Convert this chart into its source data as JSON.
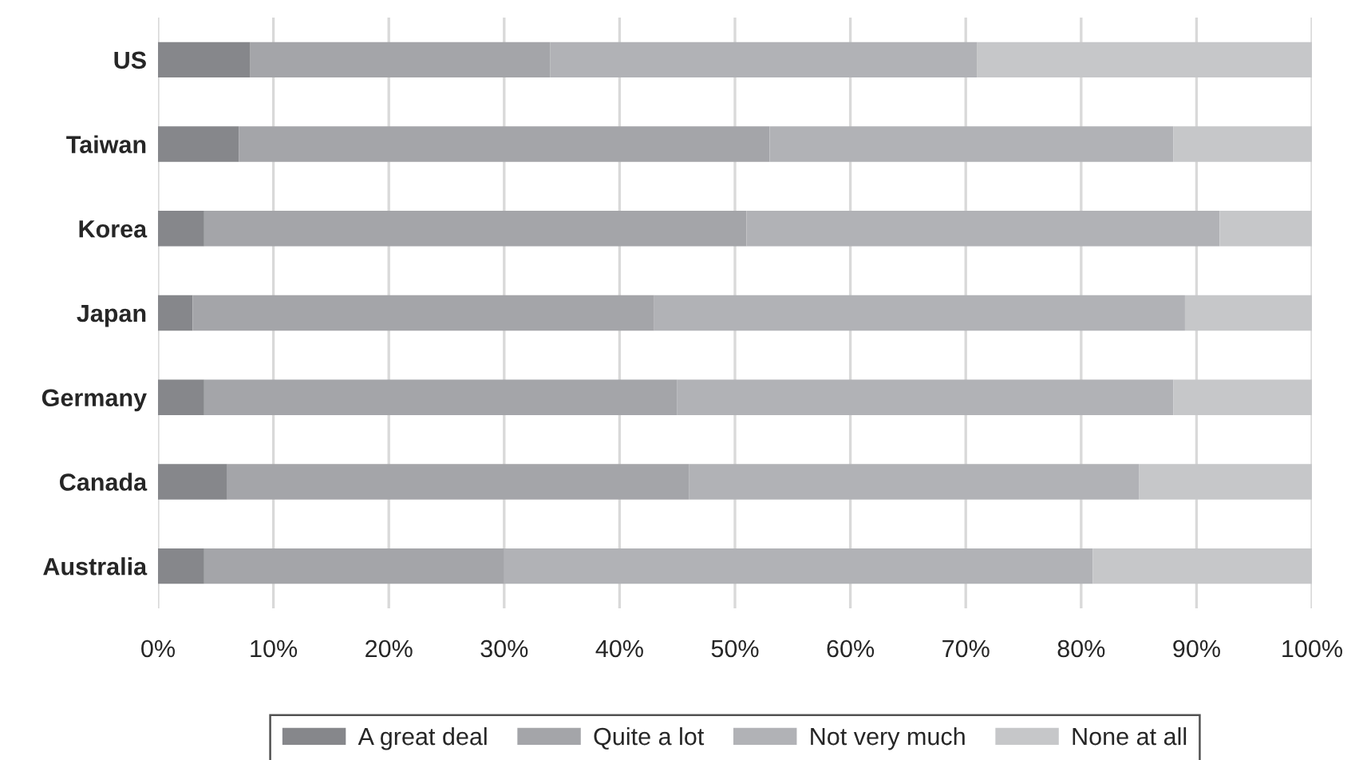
{
  "chart_data": {
    "type": "bar",
    "orientation": "horizontal",
    "stacked": true,
    "categories": [
      "US",
      "Taiwan",
      "Korea",
      "Japan",
      "Germany",
      "Canada",
      "Australia"
    ],
    "series": [
      {
        "name": "A great deal",
        "color": "#86878b",
        "values": [
          8,
          7,
          4,
          3,
          4,
          6,
          4
        ]
      },
      {
        "name": "Quite a lot",
        "color": "#a4a5a9",
        "values": [
          26,
          46,
          47,
          40,
          41,
          40,
          26
        ]
      },
      {
        "name": "Not very much",
        "color": "#b1b2b6",
        "values": [
          37,
          35,
          41,
          46,
          43,
          39,
          51
        ]
      },
      {
        "name": "None at all",
        "color": "#c6c7c9",
        "values": [
          29,
          12,
          8,
          11,
          12,
          15,
          19
        ]
      }
    ],
    "xlim": [
      0,
      100
    ],
    "xticks": [
      {
        "value": 0,
        "label": "0%"
      },
      {
        "value": 10,
        "label": "10%"
      },
      {
        "value": 20,
        "label": "20%"
      },
      {
        "value": 30,
        "label": "30%"
      },
      {
        "value": 40,
        "label": "40%"
      },
      {
        "value": 50,
        "label": "50%"
      },
      {
        "value": 60,
        "label": "60%"
      },
      {
        "value": 70,
        "label": "70%"
      },
      {
        "value": 80,
        "label": "80%"
      },
      {
        "value": 90,
        "label": "90%"
      },
      {
        "value": 100,
        "label": "100%"
      }
    ],
    "grid": "x",
    "legend": "bottom"
  }
}
